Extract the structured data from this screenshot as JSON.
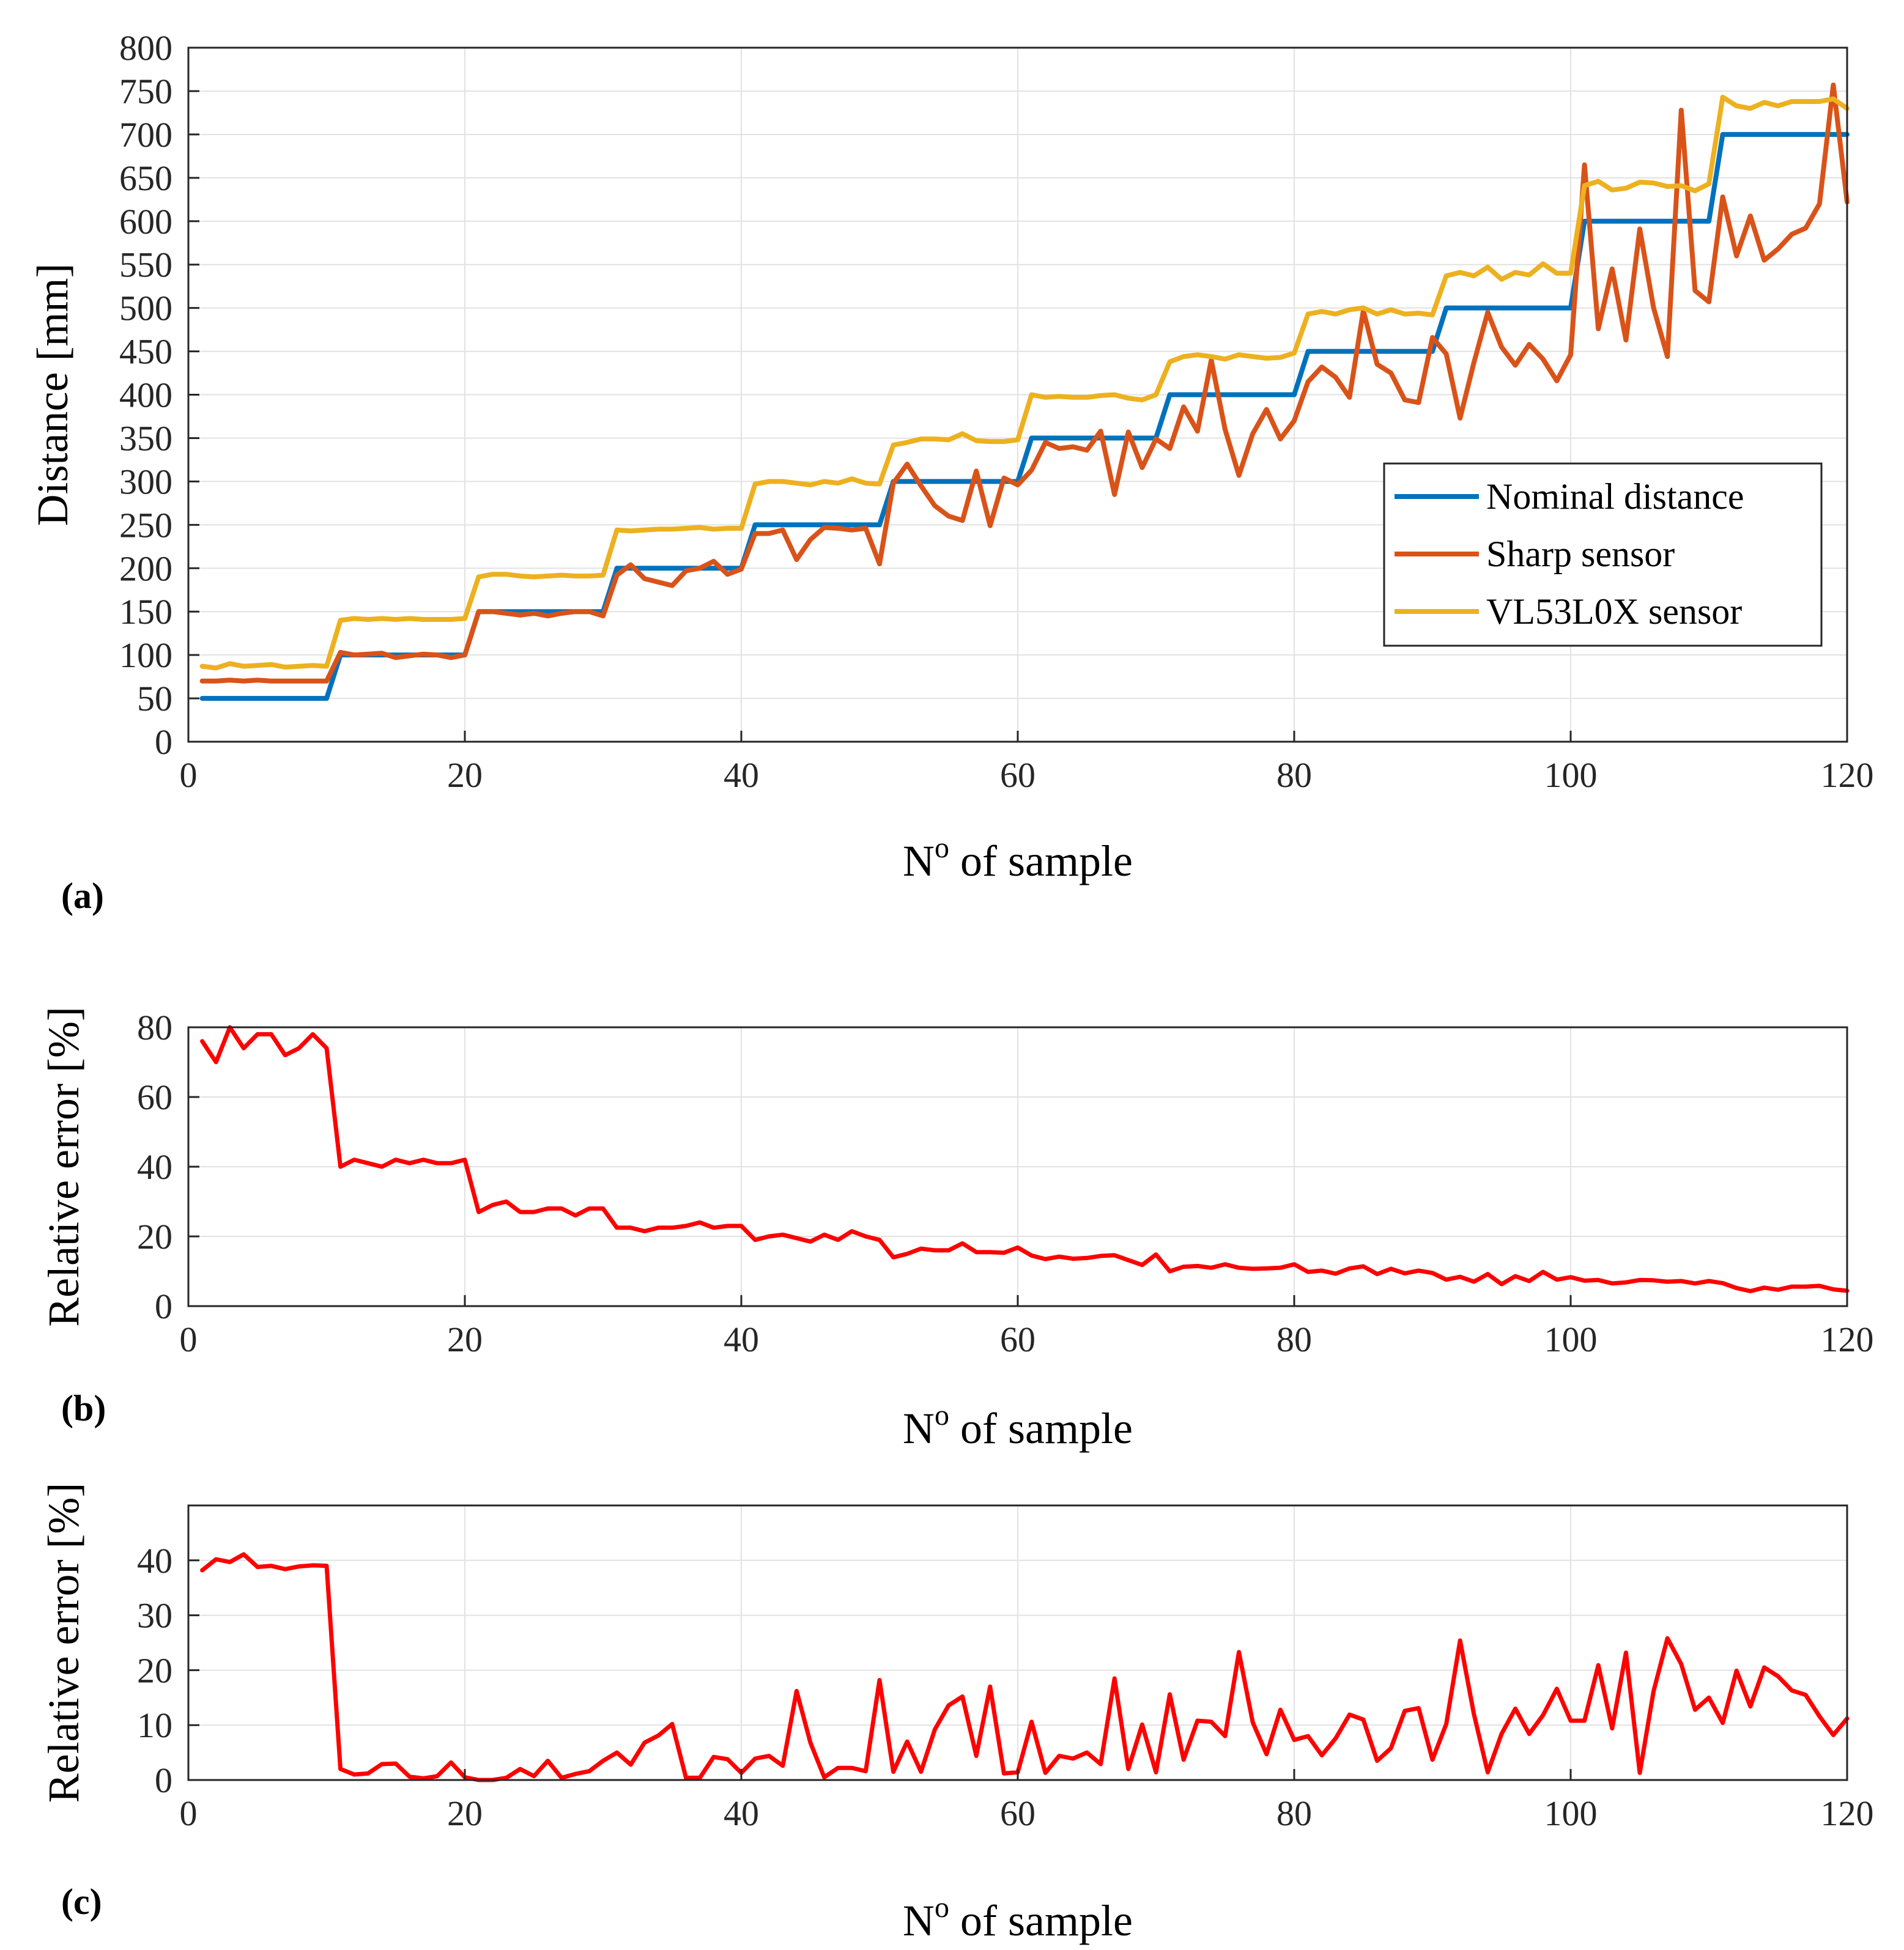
{
  "chart_data": [
    {
      "id": "a",
      "panel_label": "(a)",
      "type": "line",
      "xlabel_base": "N",
      "xlabel_sup": "o",
      "xlabel_rest": " of sample",
      "ylabel": "Distance [mm]",
      "xlim": [
        0,
        120
      ],
      "ylim": [
        0,
        800
      ],
      "xticks": [
        0,
        20,
        40,
        60,
        80,
        100,
        120
      ],
      "yticks": [
        0,
        50,
        100,
        150,
        200,
        250,
        300,
        350,
        400,
        450,
        500,
        550,
        600,
        650,
        700,
        750,
        800
      ],
      "grid": true,
      "legend_position": "right",
      "series": [
        {
          "name": "Nominal distance",
          "color": "#0072BD",
          "x_start": 1,
          "values": [
            50,
            50,
            50,
            50,
            50,
            50,
            50,
            50,
            50,
            50,
            100,
            100,
            100,
            100,
            100,
            100,
            100,
            100,
            100,
            100,
            150,
            150,
            150,
            150,
            150,
            150,
            150,
            150,
            150,
            150,
            200,
            200,
            200,
            200,
            200,
            200,
            200,
            200,
            200,
            200,
            250,
            250,
            250,
            250,
            250,
            250,
            250,
            250,
            250,
            250,
            300,
            300,
            300,
            300,
            300,
            300,
            300,
            300,
            300,
            300,
            350,
            350,
            350,
            350,
            350,
            350,
            350,
            350,
            350,
            350,
            400,
            400,
            400,
            400,
            400,
            400,
            400,
            400,
            400,
            400,
            450,
            450,
            450,
            450,
            450,
            450,
            450,
            450,
            450,
            450,
            500,
            500,
            500,
            500,
            500,
            500,
            500,
            500,
            500,
            500,
            600,
            600,
            600,
            600,
            600,
            600,
            600,
            600,
            600,
            600,
            700,
            700,
            700,
            700,
            700,
            700,
            700,
            700,
            700,
            700
          ]
        },
        {
          "name": "Sharp sensor",
          "color": "#D95319",
          "x_start": 1,
          "values": [
            70,
            70,
            71,
            70,
            71,
            70,
            70,
            70,
            70,
            70,
            103,
            100,
            101,
            102,
            97,
            99,
            101,
            100,
            97,
            100,
            150,
            150,
            148,
            146,
            148,
            145,
            148,
            150,
            150,
            145,
            192,
            204,
            188,
            184,
            180,
            197,
            200,
            208,
            193,
            199,
            240,
            240,
            244,
            210,
            233,
            247,
            246,
            244,
            246,
            205,
            298,
            320,
            295,
            272,
            260,
            255,
            312,
            249,
            304,
            296,
            313,
            345,
            338,
            340,
            336,
            358,
            285,
            357,
            316,
            349,
            338,
            386,
            358,
            440,
            360,
            307,
            355,
            383,
            349,
            370,
            415,
            432,
            420,
            397,
            497,
            435,
            425,
            394,
            391,
            466,
            447,
            373,
            437,
            495,
            455,
            434,
            458,
            441,
            416,
            446,
            665,
            476,
            545,
            463,
            591,
            500,
            444,
            728,
            520,
            507,
            628,
            560,
            606,
            555,
            568,
            585,
            592,
            620,
            757,
            622
          ]
        },
        {
          "name": "VL53L0X sensor",
          "color": "#EDB120",
          "x_start": 1,
          "values": [
            87,
            85,
            90,
            87,
            88,
            89,
            86,
            87,
            88,
            87,
            140,
            142,
            141,
            142,
            141,
            142,
            141,
            141,
            141,
            142,
            190,
            193,
            193,
            191,
            190,
            191,
            192,
            191,
            191,
            192,
            244,
            243,
            244,
            245,
            245,
            246,
            247,
            245,
            246,
            246,
            297,
            300,
            300,
            298,
            296,
            300,
            298,
            303,
            298,
            297,
            342,
            345,
            349,
            349,
            348,
            355,
            347,
            346,
            346,
            348,
            400,
            397,
            398,
            397,
            397,
            399,
            400,
            396,
            394,
            400,
            438,
            444,
            446,
            444,
            441,
            446,
            444,
            442,
            443,
            448,
            493,
            496,
            493,
            498,
            500,
            493,
            498,
            493,
            494,
            492,
            537,
            541,
            537,
            547,
            533,
            541,
            538,
            551,
            540,
            540,
            641,
            646,
            636,
            638,
            645,
            644,
            640,
            641,
            635,
            643,
            743,
            733,
            730,
            737,
            733,
            738,
            738,
            738,
            741,
            730
          ]
        }
      ]
    },
    {
      "id": "b",
      "panel_label": "(b)",
      "type": "line",
      "xlabel_base": "N",
      "xlabel_sup": "o",
      "xlabel_rest": " of sample",
      "ylabel": "Relative error [%]",
      "xlim": [
        0,
        120
      ],
      "ylim": [
        0,
        80
      ],
      "xticks": [
        0,
        20,
        40,
        60,
        80,
        100,
        120
      ],
      "yticks": [
        0,
        20,
        40,
        60,
        80
      ],
      "grid": true,
      "series": [
        {
          "name": "Relative error",
          "color": "#FF0000",
          "x_start": 1,
          "values": [
            76,
            70,
            80,
            74,
            78,
            78,
            72,
            74,
            78,
            74,
            40,
            42,
            41,
            40,
            42,
            41,
            42,
            41,
            41,
            42,
            27,
            29,
            30,
            27,
            27,
            28,
            28,
            26,
            28,
            28,
            22.5,
            22.5,
            21.5,
            22.5,
            22.5,
            23,
            24,
            22.5,
            23,
            23,
            19,
            20,
            20.5,
            19.5,
            18.5,
            20.5,
            19,
            21.5,
            20,
            19,
            14,
            15,
            16.5,
            16,
            16,
            18,
            15.5,
            15.5,
            15.3,
            16.8,
            14.5,
            13.5,
            14.2,
            13.6,
            13.8,
            14.4,
            14.6,
            13.2,
            11.8,
            14.8,
            10,
            11.3,
            11.5,
            11,
            12,
            11,
            10.7,
            10.8,
            11,
            12,
            9.8,
            10.2,
            9.3,
            10.8,
            11.4,
            9.2,
            10.7,
            9.4,
            10.2,
            9.5,
            7.6,
            8.4,
            7,
            9.2,
            6.3,
            8.6,
            7.2,
            9.8,
            7.6,
            8.3,
            7.3,
            7.5,
            6.5,
            6.8,
            7.5,
            7.4,
            7,
            7.2,
            6.5,
            7.2,
            6.6,
            5.2,
            4.3,
            5.3,
            4.7,
            5.6,
            5.6,
            5.8,
            4.8,
            4.4
          ]
        }
      ]
    },
    {
      "id": "c",
      "panel_label": "(c)",
      "type": "line",
      "xlabel_base": "N",
      "xlabel_sup": "o",
      "xlabel_rest": " of sample",
      "ylabel": "Relative error [%]",
      "xlim": [
        0,
        120
      ],
      "ylim": [
        0,
        50
      ],
      "xticks": [
        0,
        20,
        40,
        60,
        80,
        100,
        120
      ],
      "yticks": [
        0,
        10,
        20,
        30,
        40
      ],
      "grid": true,
      "series": [
        {
          "name": "Relative error",
          "color": "#FF0000",
          "x_start": 1,
          "values": [
            38.2,
            40.2,
            39.7,
            41.1,
            38.8,
            39,
            38.4,
            38.9,
            39.1,
            39,
            2,
            1,
            1.2,
            2.9,
            3,
            0.6,
            0.3,
            0.7,
            3.2,
            0.5,
            0,
            0,
            0.4,
            2,
            0.7,
            3.5,
            0.4,
            1.1,
            1.6,
            3.5,
            5,
            2.8,
            6.8,
            8.1,
            10.2,
            0.4,
            0.4,
            4.2,
            3.8,
            1.3,
            3.9,
            4.4,
            2.6,
            16.2,
            6.8,
            0.5,
            2.2,
            2.2,
            1.6,
            18.2,
            1.5,
            7,
            1.5,
            9.2,
            13.6,
            15.2,
            4.4,
            17,
            1.2,
            1.4,
            10.6,
            1.3,
            4.4,
            3.9,
            5,
            2.9,
            18.5,
            2,
            10.1,
            1.4,
            15.6,
            3.7,
            10.8,
            10.6,
            8,
            23.3,
            10.5,
            4.7,
            12.8,
            7.3,
            8,
            4.5,
            7.6,
            11.9,
            11,
            3.5,
            5.8,
            12.6,
            13.1,
            3.7,
            10.2,
            25.4,
            12,
            1.4,
            8.4,
            13,
            8.4,
            11.8,
            16.6,
            10.8,
            10.8,
            20.9,
            9.4,
            23.2,
            1.3,
            16.2,
            25.8,
            21.1,
            12.8,
            15,
            10.4,
            19.9,
            13.4,
            20.5,
            18.9,
            16.3,
            15.5,
            11.6,
            8.2,
            11.2
          ]
        }
      ]
    }
  ]
}
